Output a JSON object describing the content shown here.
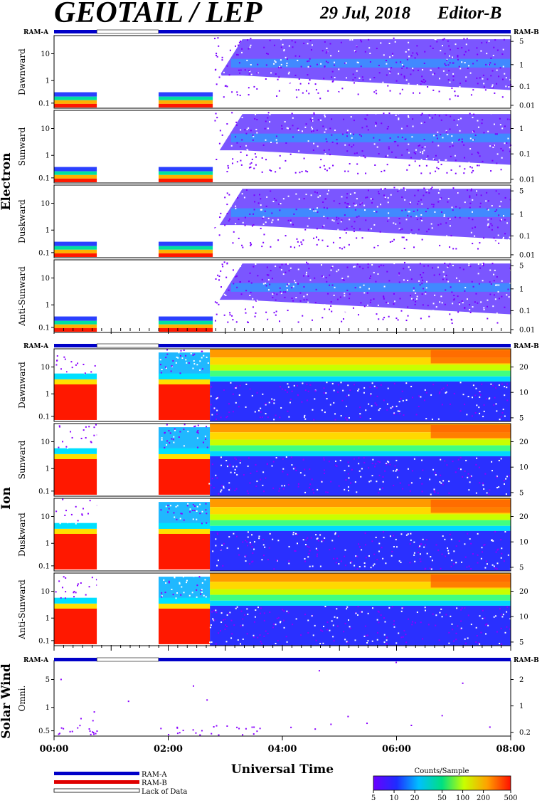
{
  "header": {
    "title": "GEOTAIL / LEP",
    "date": "29 Jul, 2018",
    "editor": "Editor-B"
  },
  "ram_labels": {
    "a": "RAM-A",
    "b": "RAM-B"
  },
  "groups": [
    {
      "name": "Electron",
      "panels": [
        {
          "label": "Dawnward",
          "left_ticks": [
            "10",
            "1",
            "0.1"
          ],
          "right_ticks": [
            "5",
            "1",
            "0.1",
            "0.01"
          ]
        },
        {
          "label": "Sunward",
          "left_ticks": [
            "10",
            "1",
            "0.1"
          ],
          "right_ticks": [
            "1",
            "0.1",
            "0.01"
          ]
        },
        {
          "label": "Duskward",
          "left_ticks": [
            "10",
            "1",
            "0.1"
          ],
          "right_ticks": [
            "5",
            "1",
            "0.1",
            "0.01"
          ]
        },
        {
          "label": "Anti-Sunward",
          "left_ticks": [
            "10",
            "1",
            "0.1"
          ],
          "right_ticks": [
            "5",
            "1",
            "0.1",
            "0.01"
          ]
        }
      ]
    },
    {
      "name": "Ion",
      "panels": [
        {
          "label": "Dawnward",
          "left_ticks": [
            "10",
            "1",
            "0.1"
          ],
          "right_ticks": [
            "20",
            "10",
            "5"
          ]
        },
        {
          "label": "Sunward",
          "left_ticks": [
            "10",
            "1",
            "0.1"
          ],
          "right_ticks": [
            "20",
            "10",
            "5"
          ]
        },
        {
          "label": "Duskward",
          "left_ticks": [
            "10",
            "1",
            "0.1"
          ],
          "right_ticks": [
            "20",
            "10",
            "5"
          ]
        },
        {
          "label": "Anti-Sunward",
          "left_ticks": [
            "10",
            "1",
            "0.1"
          ],
          "right_ticks": [
            "20",
            "10",
            "5"
          ]
        }
      ]
    },
    {
      "name": "Solar Wind",
      "panels": [
        {
          "label": "Omni.",
          "left_ticks": [
            "5",
            "1",
            "0.5"
          ],
          "right_ticks": [
            "2",
            "1",
            "0.2"
          ]
        }
      ]
    }
  ],
  "x_axis": {
    "label": "Universal Time",
    "ticks": [
      "00:00",
      "02:00",
      "04:00",
      "06:00",
      "08:00"
    ]
  },
  "legend": {
    "items": [
      {
        "label": "RAM-A",
        "color": "#0000c8"
      },
      {
        "label": "RAM-B",
        "color": "#e00000"
      },
      {
        "label": "Lack of Data",
        "color": "#ffffff"
      }
    ]
  },
  "colorbar": {
    "title": "Counts/Sample",
    "ticks": [
      "5",
      "10",
      "20",
      "50",
      "100",
      "200",
      "500"
    ]
  },
  "chart_data": {
    "type": "heatmap",
    "x_range_hours": [
      0,
      8
    ],
    "y_scale": "log",
    "ram_mode": [
      {
        "mode": "RAM-A",
        "start_hour": 0.0,
        "end_hour": 0.75
      },
      {
        "mode": "Lack of Data",
        "start_hour": 0.75,
        "end_hour": 1.83
      },
      {
        "mode": "RAM-A",
        "start_hour": 1.83,
        "end_hour": 8.0
      }
    ],
    "data_gaps_hours": [
      [
        0.75,
        1.83
      ]
    ],
    "colorbar_range": [
      5,
      500
    ],
    "colorbar_scale": "log"
  }
}
